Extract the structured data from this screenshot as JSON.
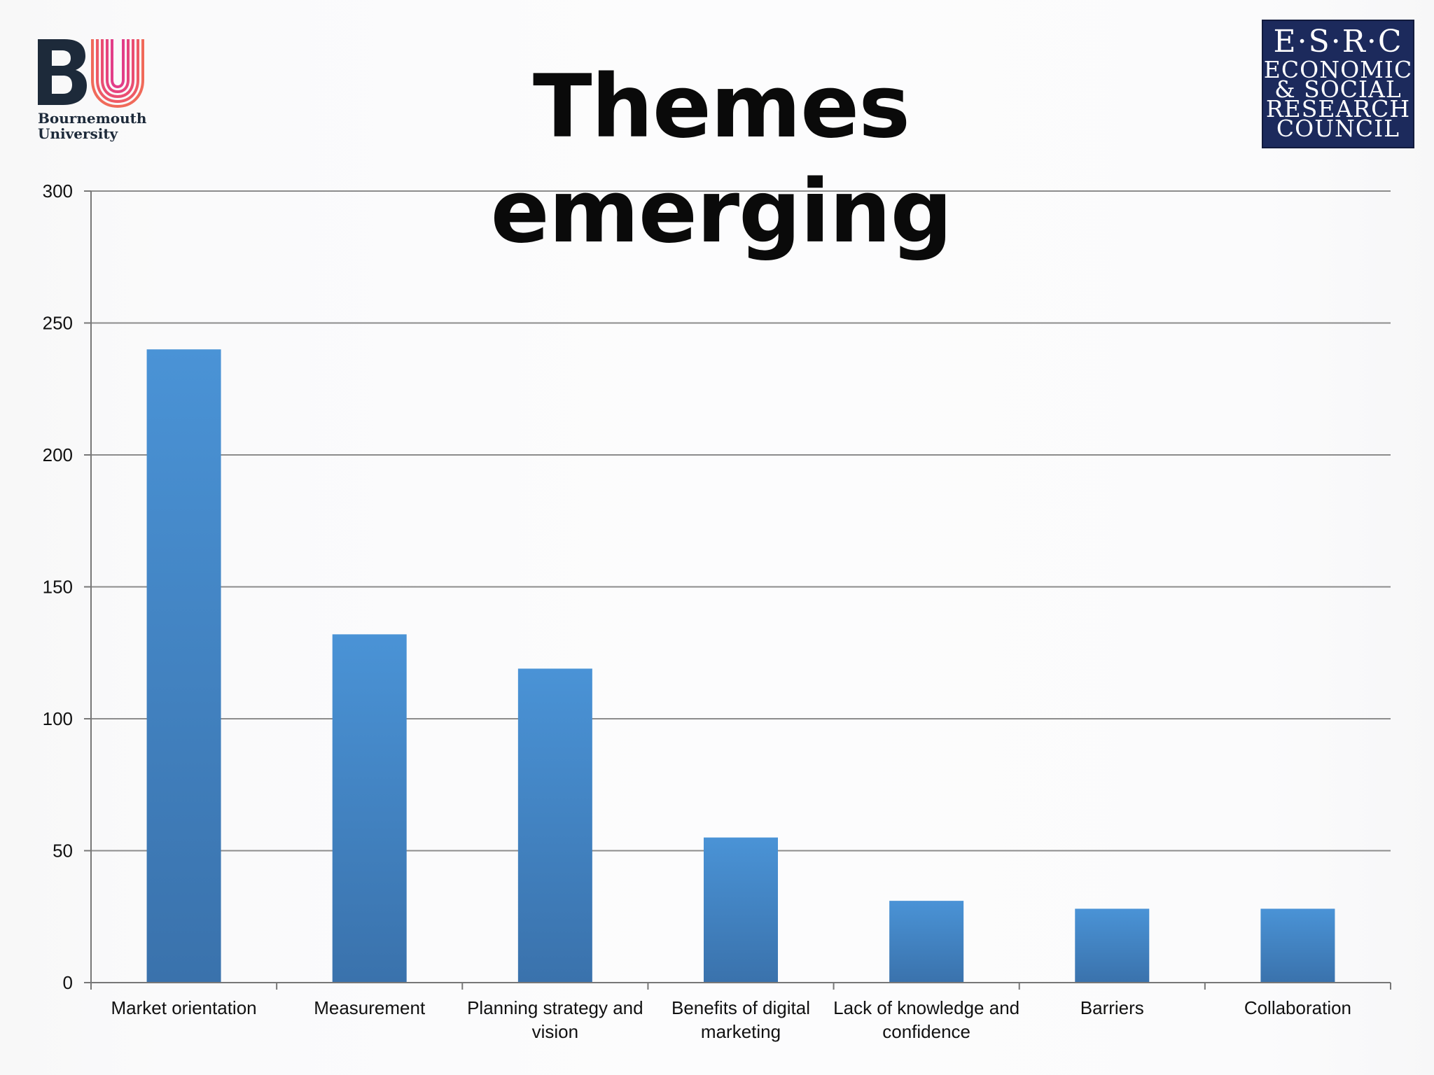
{
  "header": {
    "title": "Themes emerging",
    "left_logo": {
      "name": "Bournemouth University",
      "monogram": "BU",
      "line1": "Bournemouth",
      "line2": "University",
      "colors": {
        "letters": "#1d2a3a",
        "accent": "#e84a6a"
      }
    },
    "right_logo": {
      "line1": "E·S·R·C",
      "line2": "ECONOMIC",
      "line3": "& SOCIAL",
      "line4": "RESEARCH",
      "line5": "COUNCIL",
      "background": "#1c2a5c"
    }
  },
  "chart_data": {
    "type": "bar",
    "title": "",
    "xlabel": "",
    "ylabel": "",
    "categories": [
      "Market orientation",
      "Measurement",
      "Planning strategy and vision",
      "Benefits of digital marketing",
      "Lack of knowledge and confidence",
      "Barriers",
      "Collaboration"
    ],
    "category_label_lines": [
      [
        "Market orientation"
      ],
      [
        "Measurement"
      ],
      [
        "Planning strategy and",
        "vision"
      ],
      [
        "Benefits of digital",
        "marketing"
      ],
      [
        "Lack of knowledge and",
        "confidence"
      ],
      [
        "Barriers"
      ],
      [
        "Collaboration"
      ]
    ],
    "values": [
      240,
      132,
      119,
      55,
      31,
      28,
      28
    ],
    "ylim": [
      0,
      300
    ],
    "yticks": [
      0,
      50,
      100,
      150,
      200,
      250,
      300
    ],
    "grid": true,
    "legend": "none",
    "colors": {
      "bar_top": "#4a93d6",
      "bar_bottom": "#3a73ad",
      "grid": "#8c8c8c",
      "axis": "#777777"
    }
  }
}
